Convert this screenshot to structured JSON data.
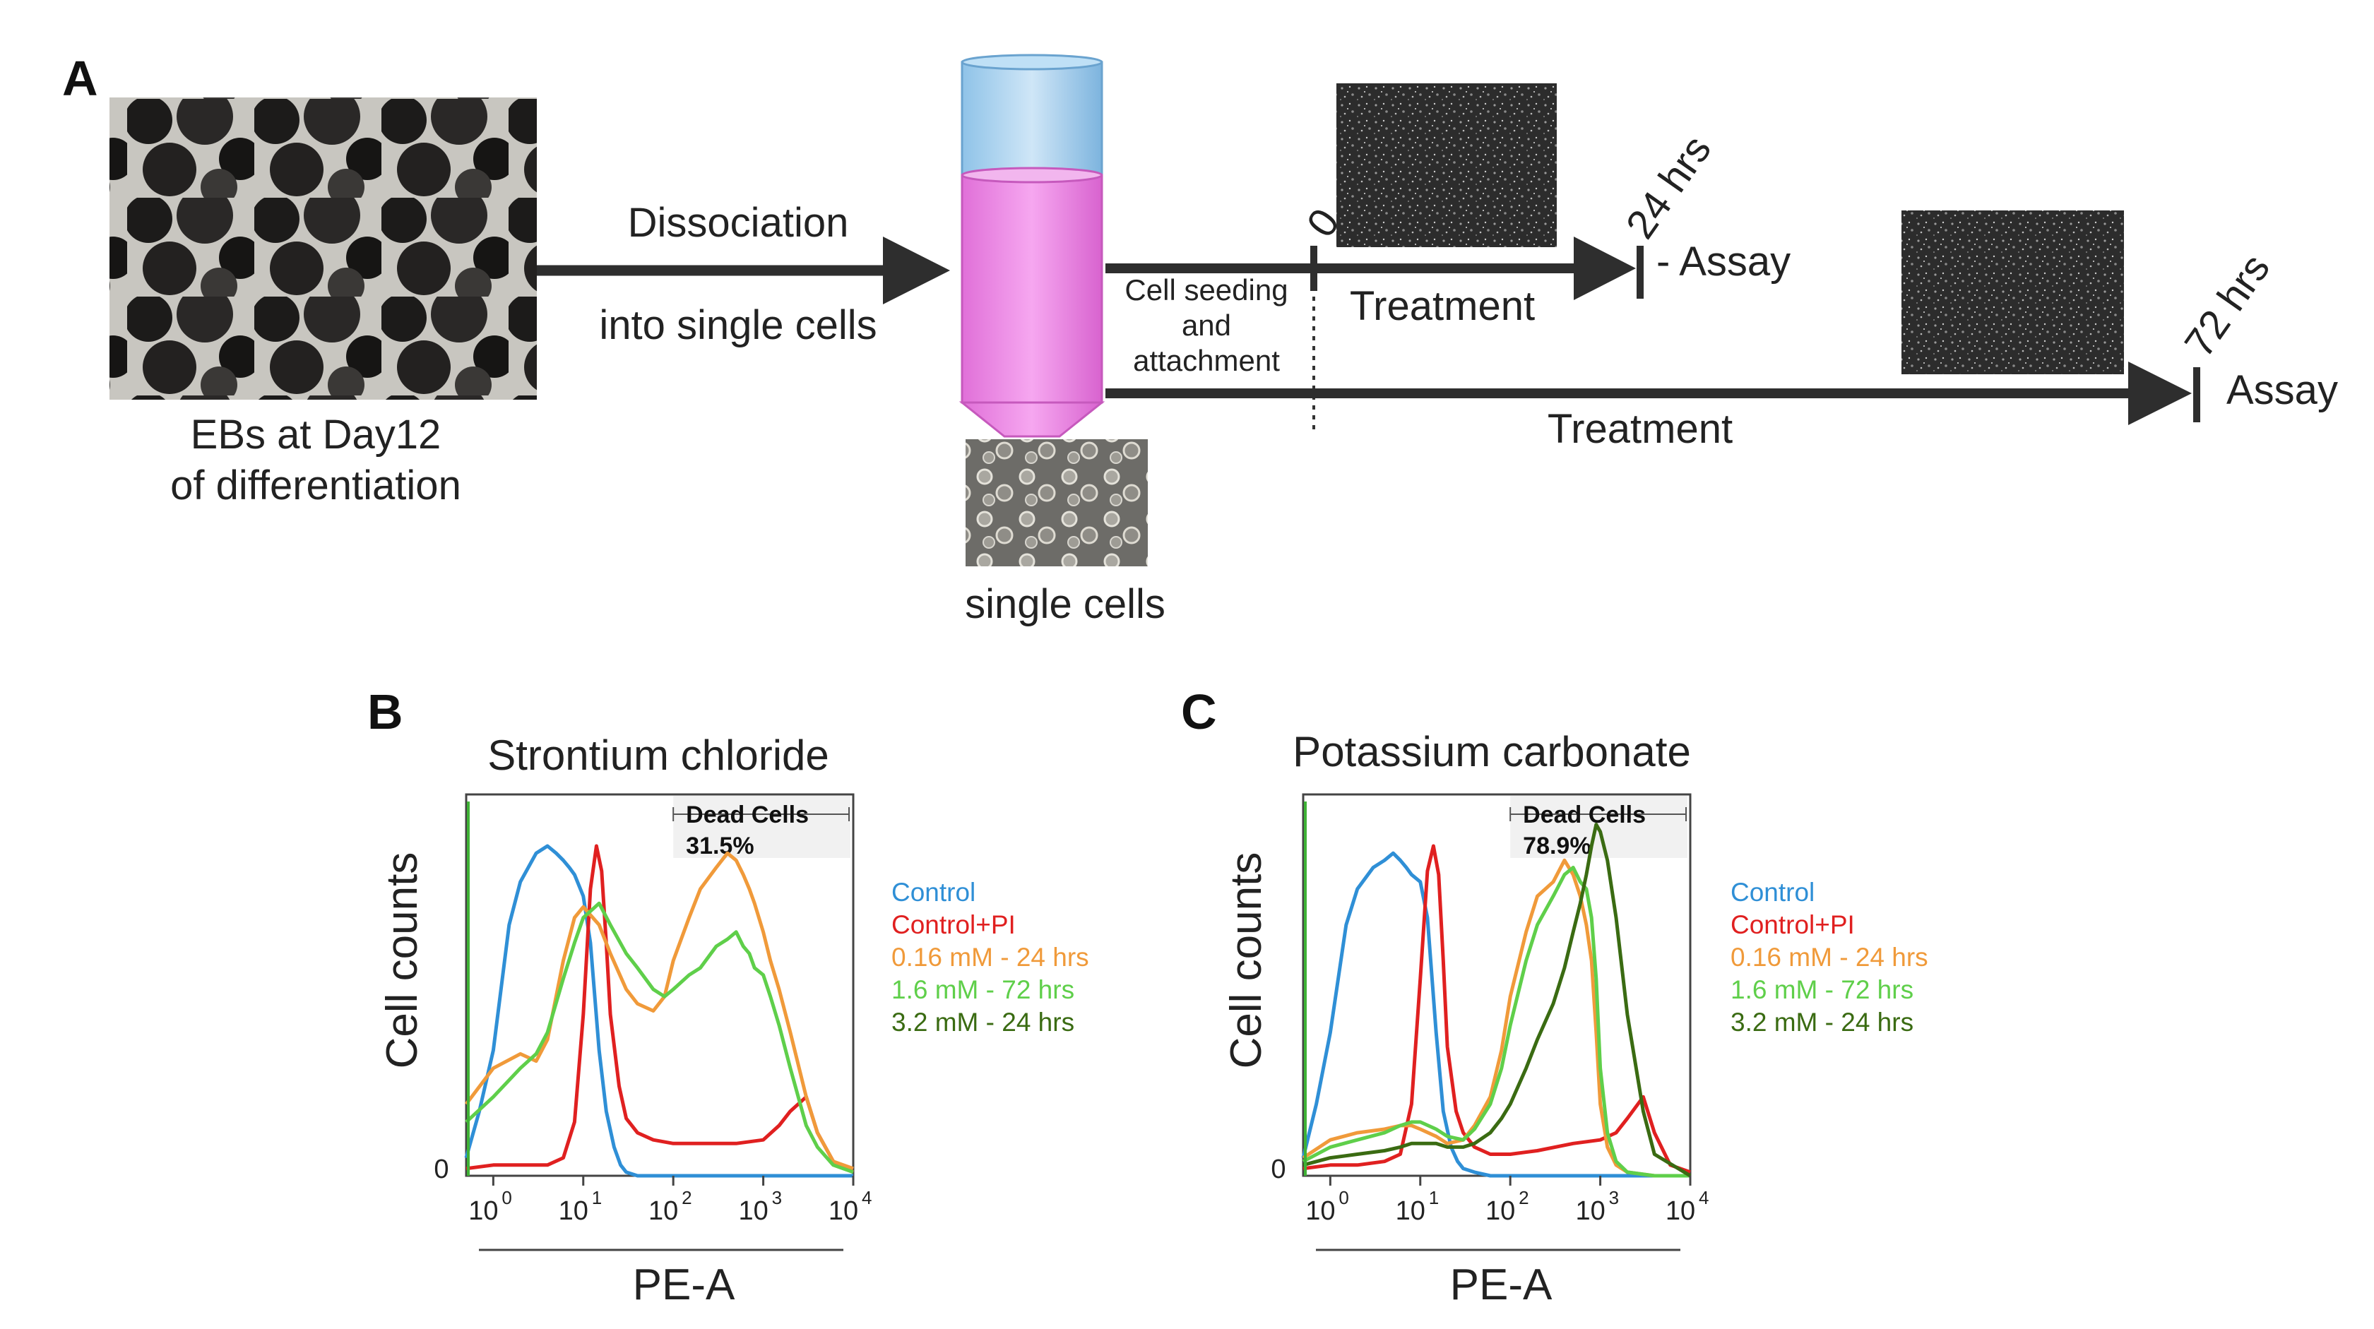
{
  "panel_a": {
    "label": "A",
    "eb_caption_line1": "EBs at Day12",
    "eb_caption_line2": "of differentiation",
    "dissociation_line1": "Dissociation",
    "dissociation_line2": "into single cells",
    "single_cells_caption": "single cells",
    "seeding_line1": "Cell seeding",
    "seeding_line2": "and",
    "seeding_line3": "attachment",
    "time_zero": "0",
    "time_24": "24 hrs",
    "time_72": "72 hrs",
    "treatment_label": "Treatment",
    "assay_24": "- Assay",
    "assay_72": "Assay"
  },
  "panel_b": {
    "label": "B",
    "title": "Strontium chloride",
    "ylabel": "Cell counts",
    "xlabel": "PE-A",
    "zero_label": "0",
    "gate_label": "Dead Cells",
    "gate_value": "31.5%"
  },
  "panel_c": {
    "label": "C",
    "title": "Potassium carbonate",
    "ylabel": "Cell counts",
    "xlabel": "PE-A",
    "zero_label": "0",
    "gate_label": "Dead Cells",
    "gate_value": "78.9%"
  },
  "x_ticks": [
    "10",
    "10",
    "10",
    "10",
    "10"
  ],
  "x_tick_exponents": [
    "0",
    "1",
    "2",
    "3",
    "4"
  ],
  "legend": [
    {
      "label": "Control",
      "color": "#2f8fd6"
    },
    {
      "label": "Control+PI",
      "color": "#e02020"
    },
    {
      "label": "0.16 mM - 24 hrs",
      "color": "#f09a3a"
    },
    {
      "label": "1.6 mM - 72 hrs",
      "color": "#5fcf4a"
    },
    {
      "label": "3.2 mM - 24 hrs",
      "color": "#3a6b12"
    }
  ],
  "chart_data": [
    {
      "type": "line",
      "title": "Strontium chloride",
      "xlabel": "PE-A",
      "ylabel": "Cell counts",
      "xscale": "log",
      "xlim": [
        0.5,
        10000
      ],
      "ylim": [
        0,
        100
      ],
      "gate": {
        "label": "Dead Cells",
        "value": "31.5%",
        "range": [
          100,
          10000
        ]
      },
      "series": [
        {
          "name": "Control",
          "color": "#2f8fd6",
          "x": [
            0.5,
            0.7,
            1,
            1.5,
            2,
            3,
            4,
            5,
            6,
            7,
            8,
            10,
            12,
            15,
            18,
            22,
            26,
            30,
            40,
            60,
            100,
            10000
          ],
          "y": [
            5,
            18,
            35,
            70,
            82,
            90,
            92,
            90,
            88,
            86,
            84,
            78,
            65,
            35,
            18,
            8,
            3,
            1,
            0,
            0,
            0,
            0
          ]
        },
        {
          "name": "Control+PI",
          "color": "#e02020",
          "x": [
            0.5,
            1,
            2,
            4,
            6,
            8,
            10,
            12,
            14,
            16,
            18,
            20,
            25,
            30,
            40,
            60,
            100,
            200,
            500,
            1000,
            1500,
            2000,
            3000,
            4000,
            6000,
            10000
          ],
          "y": [
            2,
            3,
            3,
            3,
            5,
            15,
            45,
            80,
            92,
            85,
            65,
            45,
            25,
            16,
            12,
            10,
            9,
            9,
            9,
            10,
            14,
            18,
            22,
            12,
            4,
            1
          ]
        },
        {
          "name": "0.16 mM - 24 hrs",
          "color": "#f09a3a",
          "x": [
            0.5,
            1,
            2,
            3,
            4,
            6,
            8,
            10,
            15,
            20,
            30,
            40,
            60,
            80,
            100,
            150,
            200,
            300,
            400,
            500,
            600,
            700,
            800,
            1000,
            1200,
            1500,
            2000,
            3000,
            4000,
            6000,
            10000
          ],
          "y": [
            20,
            30,
            34,
            32,
            38,
            60,
            72,
            75,
            70,
            62,
            52,
            48,
            46,
            50,
            60,
            72,
            80,
            86,
            90,
            88,
            84,
            80,
            76,
            68,
            60,
            52,
            40,
            22,
            12,
            4,
            2
          ]
        },
        {
          "name": "1.6 mM - 72 hrs",
          "color": "#5fcf4a",
          "x": [
            0.5,
            1,
            2,
            3,
            4,
            6,
            8,
            10,
            15,
            20,
            30,
            40,
            60,
            80,
            100,
            150,
            200,
            300,
            400,
            500,
            600,
            700,
            800,
            1000,
            1200,
            1500,
            2000,
            3000,
            4000,
            6000,
            10000
          ],
          "y": [
            15,
            22,
            30,
            34,
            40,
            55,
            65,
            72,
            76,
            70,
            62,
            58,
            52,
            50,
            52,
            56,
            58,
            64,
            66,
            68,
            64,
            62,
            58,
            56,
            50,
            42,
            30,
            14,
            8,
            3,
            1
          ]
        }
      ]
    },
    {
      "type": "line",
      "title": "Potassium carbonate",
      "xlabel": "PE-A",
      "ylabel": "Cell counts",
      "xscale": "log",
      "xlim": [
        0.5,
        10000
      ],
      "ylim": [
        0,
        100
      ],
      "gate": {
        "label": "Dead Cells",
        "value": "78.9%",
        "range": [
          100,
          10000
        ]
      },
      "series": [
        {
          "name": "Control",
          "color": "#2f8fd6",
          "x": [
            0.5,
            0.7,
            1,
            1.5,
            2,
            3,
            4,
            5,
            6,
            7,
            8,
            10,
            12,
            15,
            18,
            22,
            26,
            30,
            40,
            60,
            100,
            10000
          ],
          "y": [
            5,
            20,
            40,
            70,
            80,
            86,
            88,
            90,
            88,
            86,
            84,
            82,
            72,
            40,
            18,
            8,
            4,
            2,
            1,
            0,
            0,
            0
          ]
        },
        {
          "name": "Control+PI",
          "color": "#e02020",
          "x": [
            0.5,
            1,
            2,
            4,
            6,
            8,
            10,
            12,
            14,
            16,
            18,
            20,
            25,
            30,
            40,
            60,
            100,
            200,
            500,
            1000,
            1500,
            2000,
            3000,
            4000,
            6000,
            10000
          ],
          "y": [
            2,
            3,
            3,
            4,
            6,
            20,
            55,
            85,
            92,
            84,
            60,
            36,
            18,
            12,
            8,
            6,
            6,
            7,
            9,
            10,
            12,
            16,
            22,
            12,
            3,
            1
          ]
        },
        {
          "name": "0.16 mM - 24 hrs",
          "color": "#f09a3a",
          "x": [
            0.5,
            1,
            2,
            4,
            6,
            8,
            10,
            15,
            20,
            30,
            40,
            60,
            80,
            100,
            150,
            200,
            300,
            400,
            500,
            600,
            700,
            800,
            900,
            1000,
            1200,
            1500,
            2000,
            4000,
            10000
          ],
          "y": [
            5,
            10,
            12,
            13,
            14,
            14,
            13,
            11,
            9,
            10,
            14,
            22,
            35,
            50,
            68,
            78,
            82,
            88,
            84,
            78,
            70,
            60,
            40,
            20,
            8,
            3,
            1,
            0,
            0
          ]
        },
        {
          "name": "1.6 mM - 72 hrs",
          "color": "#5fcf4a",
          "x": [
            0.5,
            1,
            2,
            4,
            6,
            8,
            10,
            15,
            20,
            30,
            40,
            60,
            80,
            100,
            150,
            200,
            300,
            400,
            500,
            600,
            700,
            800,
            900,
            1000,
            1200,
            1500,
            2000,
            4000,
            10000
          ],
          "y": [
            4,
            8,
            10,
            12,
            14,
            15,
            15,
            13,
            11,
            10,
            13,
            20,
            30,
            42,
            60,
            70,
            78,
            84,
            86,
            82,
            80,
            72,
            55,
            30,
            12,
            4,
            1,
            0,
            0
          ]
        },
        {
          "name": "3.2 mM - 24 hrs",
          "color": "#3a6b12",
          "x": [
            0.5,
            1,
            2,
            4,
            6,
            8,
            10,
            15,
            20,
            30,
            40,
            60,
            80,
            100,
            150,
            200,
            300,
            400,
            500,
            600,
            700,
            800,
            900,
            1000,
            1200,
            1500,
            2000,
            3000,
            4000,
            10000
          ],
          "y": [
            3,
            5,
            6,
            7,
            8,
            9,
            9,
            9,
            8,
            8,
            9,
            12,
            16,
            20,
            30,
            38,
            48,
            58,
            68,
            76,
            84,
            92,
            98,
            96,
            88,
            72,
            45,
            18,
            6,
            0
          ]
        }
      ]
    }
  ]
}
